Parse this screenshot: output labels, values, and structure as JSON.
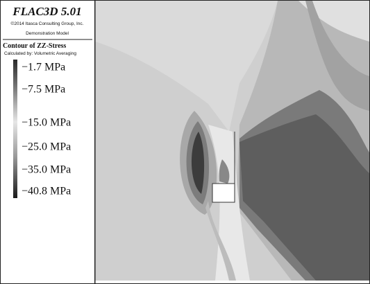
{
  "header": {
    "title": "FLAC3D 5.01",
    "copyright": "©2014 Itasca Consulting Group, Inc.",
    "model": "Demonstration Model"
  },
  "legend": {
    "title": "Contour of ZZ-Stress",
    "subtitle": "Calculated by: Volumetric Averaging",
    "entries": [
      "−1.7 MPa",
      "−7.5 MPa",
      "−15.0 MPa",
      "−25.0 MPa",
      "−35.0 MPa",
      "−40.8 MPa"
    ]
  }
}
